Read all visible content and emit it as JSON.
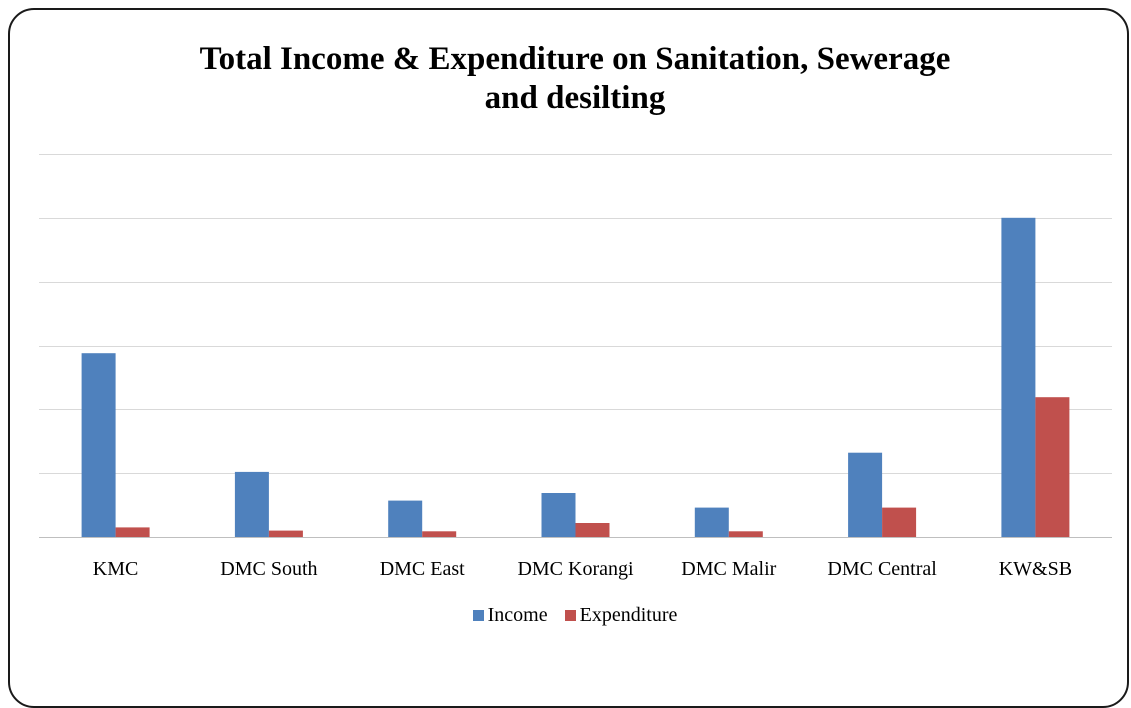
{
  "chart_data": {
    "type": "bar",
    "title": [
      "Total Income & Expenditure on Sanitation, Sewerage",
      "and desilting"
    ],
    "categories": [
      "KMC",
      "DMC South",
      "DMC East",
      "DMC Korangi",
      "DMC Malir",
      "DMC Central",
      "KW&SB"
    ],
    "series": [
      {
        "name": "Income",
        "color": "#4F81BD",
        "values": [
          2.88,
          1.02,
          0.57,
          0.69,
          0.46,
          1.32,
          5.0
        ]
      },
      {
        "name": "Expenditure",
        "color": "#C0504D",
        "values": [
          0.15,
          0.1,
          0.09,
          0.22,
          0.09,
          0.46,
          2.19
        ]
      }
    ],
    "ylim": [
      0,
      6
    ],
    "yticks": [
      0,
      1,
      2,
      3,
      4,
      5,
      6
    ],
    "grid": true,
    "y_tick_labels_visible": false,
    "xlabel": "",
    "ylabel": "",
    "legend": "bottom"
  }
}
